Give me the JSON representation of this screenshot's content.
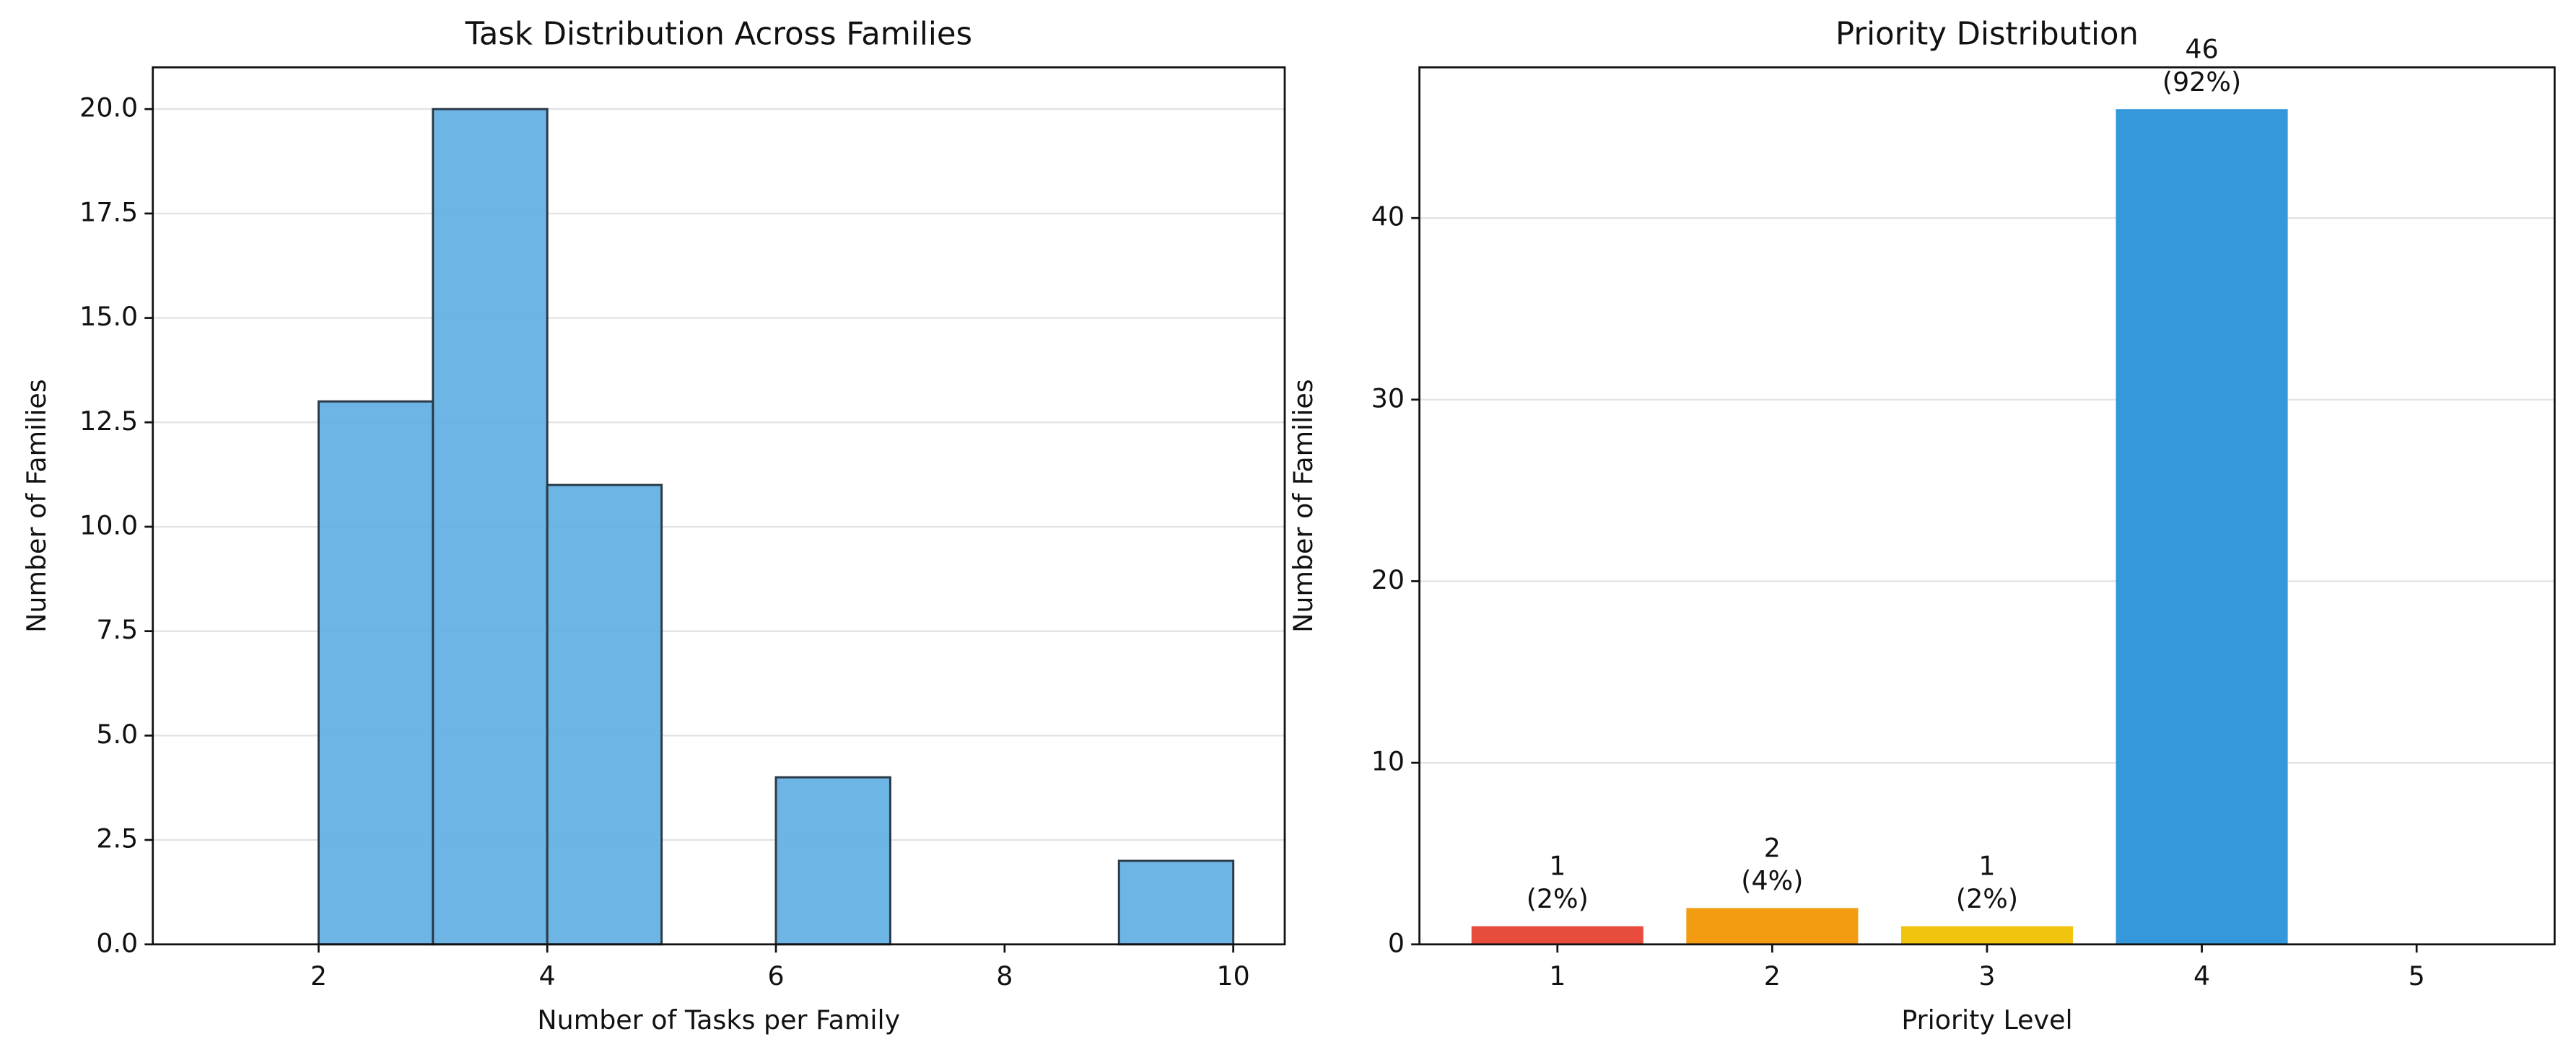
{
  "chart_data": [
    {
      "type": "histogram",
      "title": "Task Distribution Across Families",
      "x_label": "Number of Tasks per Family",
      "y_label": "Number of Families",
      "bins": [
        1,
        2,
        3,
        4,
        5,
        6,
        7,
        8,
        9,
        10
      ],
      "values": [
        0,
        13,
        20,
        11,
        0,
        4,
        0,
        0,
        2
      ],
      "color": "#5dade2",
      "edge_color": "#2b3a48",
      "xlim": [
        0.55,
        10.45
      ],
      "xticks": [
        2,
        4,
        6,
        8,
        10
      ],
      "ylim": [
        0,
        21
      ],
      "yticks": [
        {
          "value": 0,
          "label": "0.0"
        },
        {
          "value": 2.5,
          "label": "2.5"
        },
        {
          "value": 5,
          "label": "5.0"
        },
        {
          "value": 7.5,
          "label": "7.5"
        },
        {
          "value": 10,
          "label": "10.0"
        },
        {
          "value": 12.5,
          "label": "12.5"
        },
        {
          "value": 15,
          "label": "15.0"
        },
        {
          "value": 17.5,
          "label": "17.5"
        },
        {
          "value": 20,
          "label": "20.0"
        }
      ],
      "grid": true
    },
    {
      "type": "bar",
      "title": "Priority Distribution",
      "x_label": "Priority Level",
      "y_label": "Number of Families",
      "categories": [
        "1",
        "2",
        "3",
        "4",
        "5"
      ],
      "values": [
        1,
        2,
        1,
        46,
        0
      ],
      "value_labels": [
        [
          "1",
          "(2%)"
        ],
        [
          "2",
          "(4%)"
        ],
        [
          "1",
          "(2%)"
        ],
        [
          "46",
          "(92%)"
        ],
        null
      ],
      "colors": [
        "#e74c3c",
        "#f39c12",
        "#f1c40f",
        "#3498db",
        "#9b59b6"
      ],
      "ylim": [
        0,
        48.3
      ],
      "yticks": [
        0,
        10,
        20,
        30,
        40
      ],
      "grid": true
    }
  ]
}
